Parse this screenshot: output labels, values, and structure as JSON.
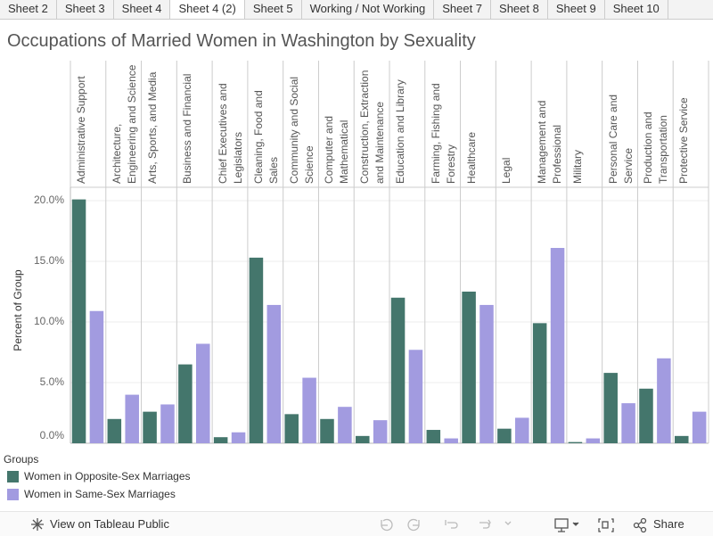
{
  "tabs": [
    "Sheet 2",
    "Sheet 3",
    "Sheet 4",
    "Sheet 4 (2)",
    "Sheet 5",
    "Working / Not Working",
    "Sheet 7",
    "Sheet 8",
    "Sheet 9",
    "Sheet 10"
  ],
  "active_tab": 3,
  "chart_data": {
    "type": "bar",
    "title": "Occupations of Married Women in Washington by Sexuality",
    "y_label": "Percent of Group",
    "categories": [
      "Administrative Support",
      "Architecture, Engineering and Science",
      "Arts, Sports, and Media",
      "Business and Financial",
      "Chief Executives and Legislators",
      "Cleaning, Food and Sales",
      "Community and Social Science",
      "Computer and Mathematical",
      "Construction, Extraction and Maintenance",
      "Education and Library",
      "Farming, Fishing and Forestry",
      "Healthcare",
      "Legal",
      "Management and Professional",
      "Military",
      "Personal Care and Service",
      "Production and Transportation",
      "Protective Service"
    ],
    "series": [
      {
        "name": "Women in Opposite-Sex Marriages",
        "color": "#44766c",
        "values": [
          20.1,
          2.0,
          2.6,
          6.5,
          0.5,
          15.3,
          2.4,
          2.0,
          0.6,
          12.0,
          1.1,
          12.5,
          1.2,
          9.9,
          0.1,
          5.8,
          4.5,
          0.6
        ]
      },
      {
        "name": "Women in Same-Sex Marriages",
        "color": "#a29be0",
        "values": [
          10.9,
          4.0,
          3.2,
          8.2,
          0.9,
          11.4,
          5.4,
          3.0,
          1.9,
          7.7,
          0.4,
          11.4,
          2.1,
          16.1,
          0.4,
          3.3,
          7.0,
          2.6
        ]
      }
    ],
    "legend_title": "Groups",
    "ylim": [
      0,
      21.1
    ],
    "yticks": [
      {
        "value": 0,
        "label": "0.0%"
      },
      {
        "value": 5,
        "label": "5.0%"
      },
      {
        "value": 10,
        "label": "10.0%"
      },
      {
        "value": 15,
        "label": "15.0%"
      },
      {
        "value": 20,
        "label": "20.0%"
      }
    ],
    "grid": true
  },
  "footer": {
    "view_link": "View on Tableau Public",
    "share": "Share"
  }
}
